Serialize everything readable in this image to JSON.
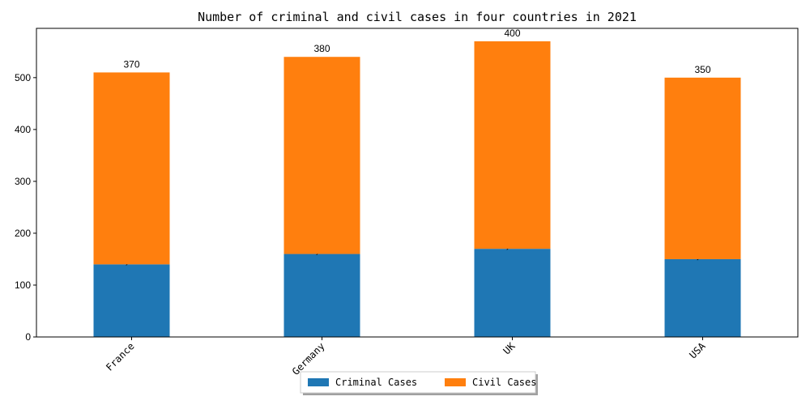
{
  "chart_data": {
    "type": "bar",
    "stacked": true,
    "title": "Number of criminal and civil cases in four countries in 2021",
    "xlabel": "",
    "ylabel": "",
    "categories": [
      "France",
      "Germany",
      "UK",
      "USA"
    ],
    "series": [
      {
        "name": "Criminal Cases",
        "color": "#1f77b4",
        "values": [
          140,
          160,
          170,
          150
        ]
      },
      {
        "name": "Civil Cases",
        "color": "#ff7f0e",
        "values": [
          370,
          380,
          400,
          350
        ]
      }
    ],
    "ylim": [
      0,
      595
    ],
    "yticks": [
      0,
      100,
      200,
      300,
      400,
      500
    ],
    "grid": false,
    "legend_position": "bottom-center"
  }
}
